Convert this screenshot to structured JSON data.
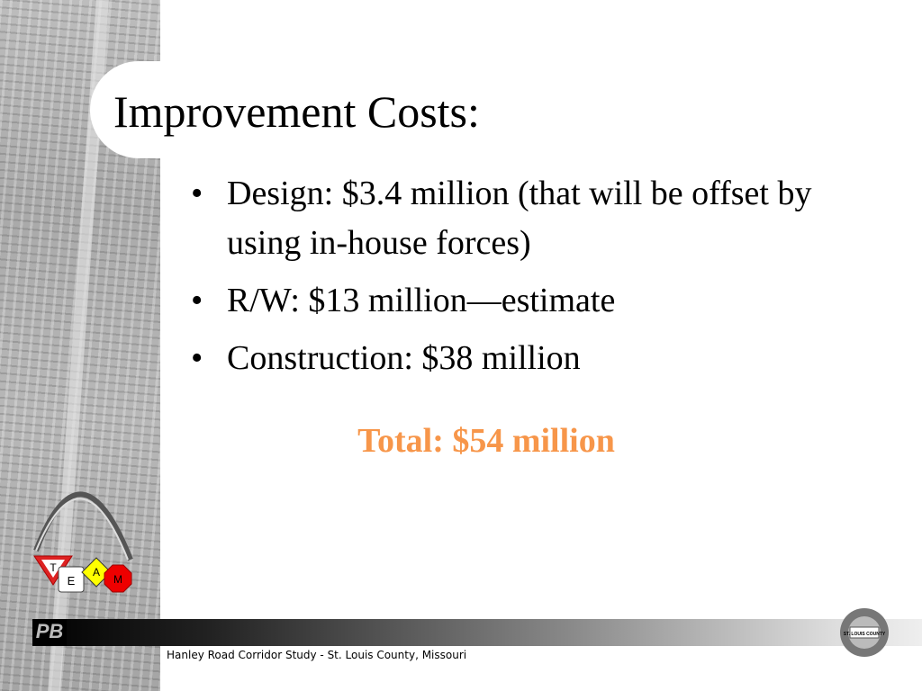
{
  "slide": {
    "title": "Improvement Costs:",
    "bullets": [
      {
        "bullet": "•",
        "text": "Design:  $3.4 million (that will be offset by using in-house forces)"
      },
      {
        "bullet": "•",
        "text": "R/W:  $13 million—estimate"
      },
      {
        "bullet": "•",
        "text": "Construction:  $38 million"
      }
    ],
    "total": "Total: $54 million",
    "total_color": "#F7964A"
  },
  "footer": {
    "text": "Hanley Road Corridor Study - St. Louis County, Missouri",
    "pb_logo": "PB",
    "seal_text": "ST. LOUIS COUNTY"
  },
  "team_logo": {
    "letters": [
      "T",
      "E",
      "A",
      "M"
    ]
  }
}
